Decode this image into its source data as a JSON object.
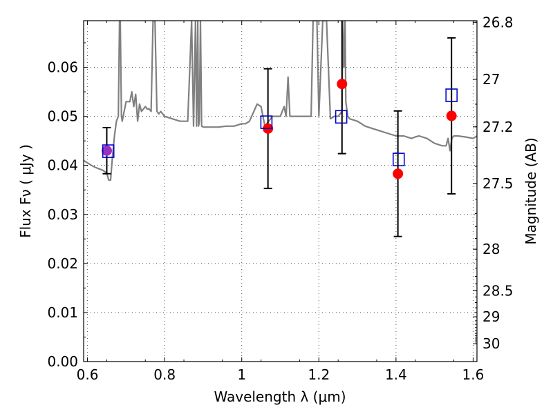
{
  "chart_data": {
    "type": "scatter",
    "xlabel": "Wavelength  λ (μm)",
    "ylabel": "Flux  Fν  ( μJy )",
    "ylabel_right": "Magnitude (AB)",
    "xlim": [
      0.59,
      1.61
    ],
    "ylim": [
      0.0,
      0.0695
    ],
    "x_ticks": [
      {
        "value": 0.6,
        "label": "0.6"
      },
      {
        "value": 0.8,
        "label": "0.8"
      },
      {
        "value": 1.0,
        "label": "1"
      },
      {
        "value": 1.2,
        "label": "1.2"
      },
      {
        "value": 1.4,
        "label": "1.4"
      },
      {
        "value": 1.6,
        "label": "1.6"
      }
    ],
    "y_ticks": [
      {
        "value": 0.0,
        "label": "0.00"
      },
      {
        "value": 0.01,
        "label": "0.01"
      },
      {
        "value": 0.02,
        "label": "0.02"
      },
      {
        "value": 0.03,
        "label": "0.03"
      },
      {
        "value": 0.04,
        "label": "0.04"
      },
      {
        "value": 0.05,
        "label": "0.05"
      },
      {
        "value": 0.06,
        "label": "0.06"
      }
    ],
    "right_ticks": [
      {
        "mag": 26.8,
        "label": "26.8"
      },
      {
        "mag": 27,
        "label": "27"
      },
      {
        "mag": 27.2,
        "label": "27.2"
      },
      {
        "mag": 27.5,
        "label": "27.5"
      },
      {
        "mag": 28,
        "label": "28"
      },
      {
        "mag": 28.5,
        "label": "28.5"
      },
      {
        "mag": 29,
        "label": "29"
      },
      {
        "mag": 30,
        "label": "30"
      }
    ],
    "grid": true,
    "colors": {
      "model_line": "#808080",
      "observed": "#ff0000",
      "model_photometry": "#0000cc",
      "errorbar": "#000000",
      "overlap": "#9b30c0"
    },
    "series": [
      {
        "kind": "observed",
        "points": [
          {
            "x": 0.65,
            "y": 0.043,
            "yerr": 0.0047
          },
          {
            "x": 1.068,
            "y": 0.0475,
            "yerr": 0.0122
          },
          {
            "x": 1.26,
            "y": 0.0566,
            "yerr": 0.0142
          },
          {
            "x": 1.405,
            "y": 0.0383,
            "yerr": 0.0128
          },
          {
            "x": 1.544,
            "y": 0.0501,
            "yerr": 0.0159
          }
        ]
      },
      {
        "kind": "model_photometry",
        "points": [
          {
            "x": 0.654,
            "y": 0.0429
          },
          {
            "x": 1.064,
            "y": 0.0488
          },
          {
            "x": 1.258,
            "y": 0.0499
          },
          {
            "x": 1.407,
            "y": 0.0412
          },
          {
            "x": 1.544,
            "y": 0.0543
          }
        ]
      },
      {
        "kind": "model_spectrum",
        "x": [
          0.59,
          0.6,
          0.61,
          0.62,
          0.63,
          0.64,
          0.645,
          0.65,
          0.655,
          0.66,
          0.665,
          0.67,
          0.675,
          0.68,
          0.683,
          0.685,
          0.688,
          0.69,
          0.7,
          0.71,
          0.715,
          0.72,
          0.725,
          0.73,
          0.735,
          0.74,
          0.75,
          0.755,
          0.76,
          0.765,
          0.77,
          0.775,
          0.78,
          0.785,
          0.79,
          0.8,
          0.82,
          0.84,
          0.86,
          0.87,
          0.875,
          0.88,
          0.883,
          0.886,
          0.888,
          0.89,
          0.893,
          0.896,
          0.9,
          0.92,
          0.94,
          0.96,
          0.98,
          1.0,
          1.01,
          1.02,
          1.04,
          1.05,
          1.06,
          1.08,
          1.09,
          1.1,
          1.11,
          1.115,
          1.12,
          1.125,
          1.13,
          1.16,
          1.18,
          1.185,
          1.19,
          1.195,
          1.2,
          1.21,
          1.22,
          1.23,
          1.24,
          1.25,
          1.26,
          1.262,
          1.265,
          1.268,
          1.27,
          1.275,
          1.28,
          1.3,
          1.32,
          1.34,
          1.36,
          1.38,
          1.4,
          1.42,
          1.44,
          1.45,
          1.46,
          1.48,
          1.5,
          1.52,
          1.53,
          1.535,
          1.54,
          1.545,
          1.55,
          1.56,
          1.58,
          1.6,
          1.61
        ],
        "y": [
          0.041,
          0.0405,
          0.04,
          0.0396,
          0.0393,
          0.039,
          0.0387,
          0.0384,
          0.037,
          0.037,
          0.042,
          0.046,
          0.049,
          0.05,
          0.0695,
          0.0695,
          0.05,
          0.049,
          0.053,
          0.053,
          0.055,
          0.052,
          0.0545,
          0.049,
          0.0525,
          0.051,
          0.052,
          0.0515,
          0.0515,
          0.051,
          0.0695,
          0.0695,
          0.051,
          0.0505,
          0.051,
          0.05,
          0.0495,
          0.049,
          0.049,
          0.0695,
          0.048,
          0.0695,
          0.048,
          0.0695,
          0.048,
          0.049,
          0.0695,
          0.048,
          0.0478,
          0.0478,
          0.0478,
          0.048,
          0.048,
          0.0485,
          0.0485,
          0.049,
          0.0525,
          0.052,
          0.048,
          0.05,
          0.05,
          0.05,
          0.052,
          0.05,
          0.058,
          0.05,
          0.05,
          0.05,
          0.05,
          0.0695,
          0.0695,
          0.0695,
          0.05,
          0.0695,
          0.0695,
          0.0495,
          0.05,
          0.05,
          0.051,
          0.0695,
          0.06,
          0.0695,
          0.053,
          0.05,
          0.0495,
          0.049,
          0.048,
          0.0475,
          0.047,
          0.0465,
          0.046,
          0.046,
          0.0455,
          0.0458,
          0.046,
          0.0455,
          0.0445,
          0.044,
          0.044,
          0.0455,
          0.043,
          0.0455,
          0.046,
          0.046,
          0.0458,
          0.0455,
          0.046
        ]
      }
    ]
  }
}
